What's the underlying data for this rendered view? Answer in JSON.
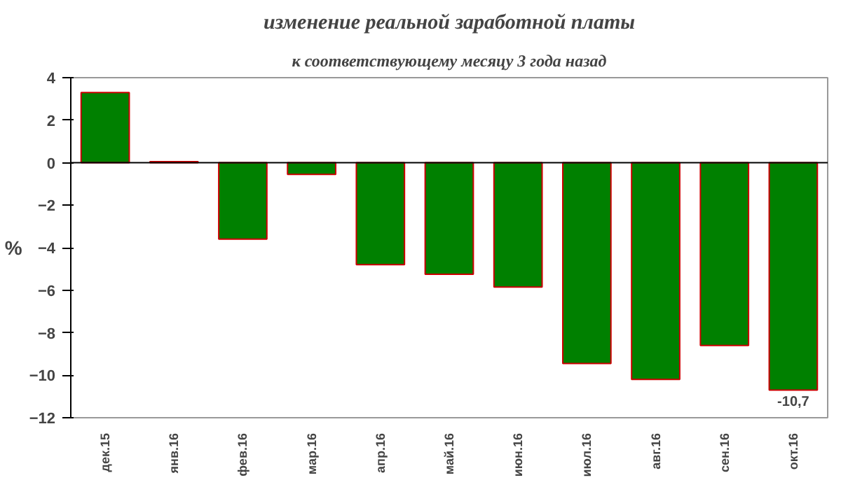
{
  "chart_data": {
    "type": "bar",
    "title": "изменение реальной заработной платы",
    "subtitle": "к соответствующему месяцу 3 года назад",
    "ylabel": "%",
    "categories": [
      "дек.15",
      "янв.16",
      "фев.16",
      "мар.16",
      "апр.16",
      "май.16",
      "июн.16",
      "июл.16",
      "авг.16",
      "сен.16",
      "окт.16"
    ],
    "values": [
      3.3,
      0.05,
      -3.6,
      -0.55,
      -4.8,
      -5.25,
      -5.85,
      -9.45,
      -10.2,
      -8.6,
      -10.7
    ],
    "value_labels": [
      null,
      null,
      null,
      null,
      null,
      null,
      null,
      null,
      null,
      null,
      "-10,7"
    ],
    "color": "#008000",
    "ylim": [
      -12,
      4
    ],
    "yticks": [
      -12,
      -10,
      -8,
      -6,
      -4,
      -2,
      0,
      2,
      4
    ],
    "grid": false,
    "ref_lines": [
      {
        "axis": "y",
        "value": 0,
        "color": "#000000"
      }
    ]
  }
}
